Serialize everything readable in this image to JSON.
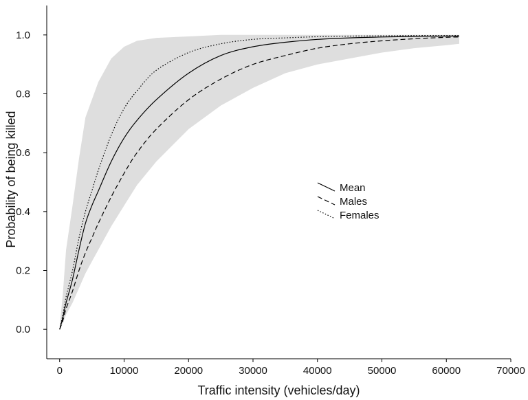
{
  "chart_data": {
    "type": "line",
    "xlabel": "Traffic intensity (vehicles/day)",
    "ylabel": "Probability of being killed",
    "xlim": [
      -2000,
      70000
    ],
    "ylim": [
      -0.1,
      1.1
    ],
    "xticks": [
      0,
      10000,
      20000,
      30000,
      40000,
      50000,
      60000,
      70000
    ],
    "xtick_labels": [
      "0",
      "10000",
      "20000",
      "30000",
      "40000",
      "50000",
      "60000",
      "70000"
    ],
    "yticks": [
      0,
      0.2,
      0.4,
      0.6,
      0.8,
      1.0
    ],
    "ytick_labels": [
      "0.0",
      "0.2",
      "0.4",
      "0.6",
      "0.8",
      "1.0"
    ],
    "grid": false,
    "legend_position": "center-right",
    "band": {
      "fill": "#dedede",
      "x": [
        0,
        500,
        1000,
        2000,
        3000,
        4000,
        5000,
        6000,
        8000,
        10000,
        12000,
        15000,
        20000,
        25000,
        30000,
        35000,
        40000,
        45000,
        50000,
        55000,
        60000,
        62000
      ],
      "upper": [
        0.01,
        0.12,
        0.27,
        0.42,
        0.58,
        0.72,
        0.78,
        0.84,
        0.92,
        0.96,
        0.98,
        0.99,
        0.995,
        1.0,
        1.0,
        1.0,
        1.0,
        1.0,
        1.0,
        1.0,
        1.0,
        1.0
      ],
      "lower": [
        0.0,
        0.02,
        0.05,
        0.09,
        0.14,
        0.19,
        0.23,
        0.27,
        0.35,
        0.42,
        0.49,
        0.57,
        0.68,
        0.76,
        0.82,
        0.87,
        0.9,
        0.92,
        0.94,
        0.955,
        0.965,
        0.97
      ]
    },
    "series": [
      {
        "name": "Mean",
        "style": "solid",
        "x": [
          0,
          500,
          1000,
          2000,
          3000,
          4000,
          5000,
          6000,
          8000,
          10000,
          12000,
          15000,
          20000,
          25000,
          30000,
          35000,
          40000,
          45000,
          50000,
          55000,
          60000,
          62000
        ],
        "values": [
          0.0,
          0.04,
          0.09,
          0.17,
          0.27,
          0.36,
          0.42,
          0.47,
          0.57,
          0.65,
          0.71,
          0.78,
          0.87,
          0.93,
          0.96,
          0.975,
          0.985,
          0.99,
          0.993,
          0.995,
          0.996,
          0.996
        ]
      },
      {
        "name": "Males",
        "style": "dashed",
        "x": [
          0,
          500,
          1000,
          2000,
          3000,
          4000,
          5000,
          6000,
          8000,
          10000,
          12000,
          15000,
          20000,
          25000,
          30000,
          35000,
          40000,
          45000,
          50000,
          55000,
          60000,
          62000
        ],
        "values": [
          0.0,
          0.03,
          0.07,
          0.13,
          0.2,
          0.26,
          0.31,
          0.36,
          0.45,
          0.53,
          0.6,
          0.68,
          0.78,
          0.85,
          0.9,
          0.93,
          0.955,
          0.97,
          0.98,
          0.987,
          0.992,
          0.993
        ]
      },
      {
        "name": "Females",
        "style": "dotted",
        "x": [
          0,
          500,
          1000,
          2000,
          3000,
          4000,
          5000,
          6000,
          8000,
          10000,
          12000,
          15000,
          20000,
          25000,
          30000,
          35000,
          40000,
          45000,
          50000,
          55000,
          60000,
          62000
        ],
        "values": [
          0.0,
          0.05,
          0.11,
          0.2,
          0.31,
          0.4,
          0.47,
          0.54,
          0.66,
          0.75,
          0.81,
          0.88,
          0.94,
          0.97,
          0.985,
          0.99,
          0.994,
          0.996,
          0.997,
          0.998,
          0.998,
          0.998
        ]
      }
    ]
  }
}
